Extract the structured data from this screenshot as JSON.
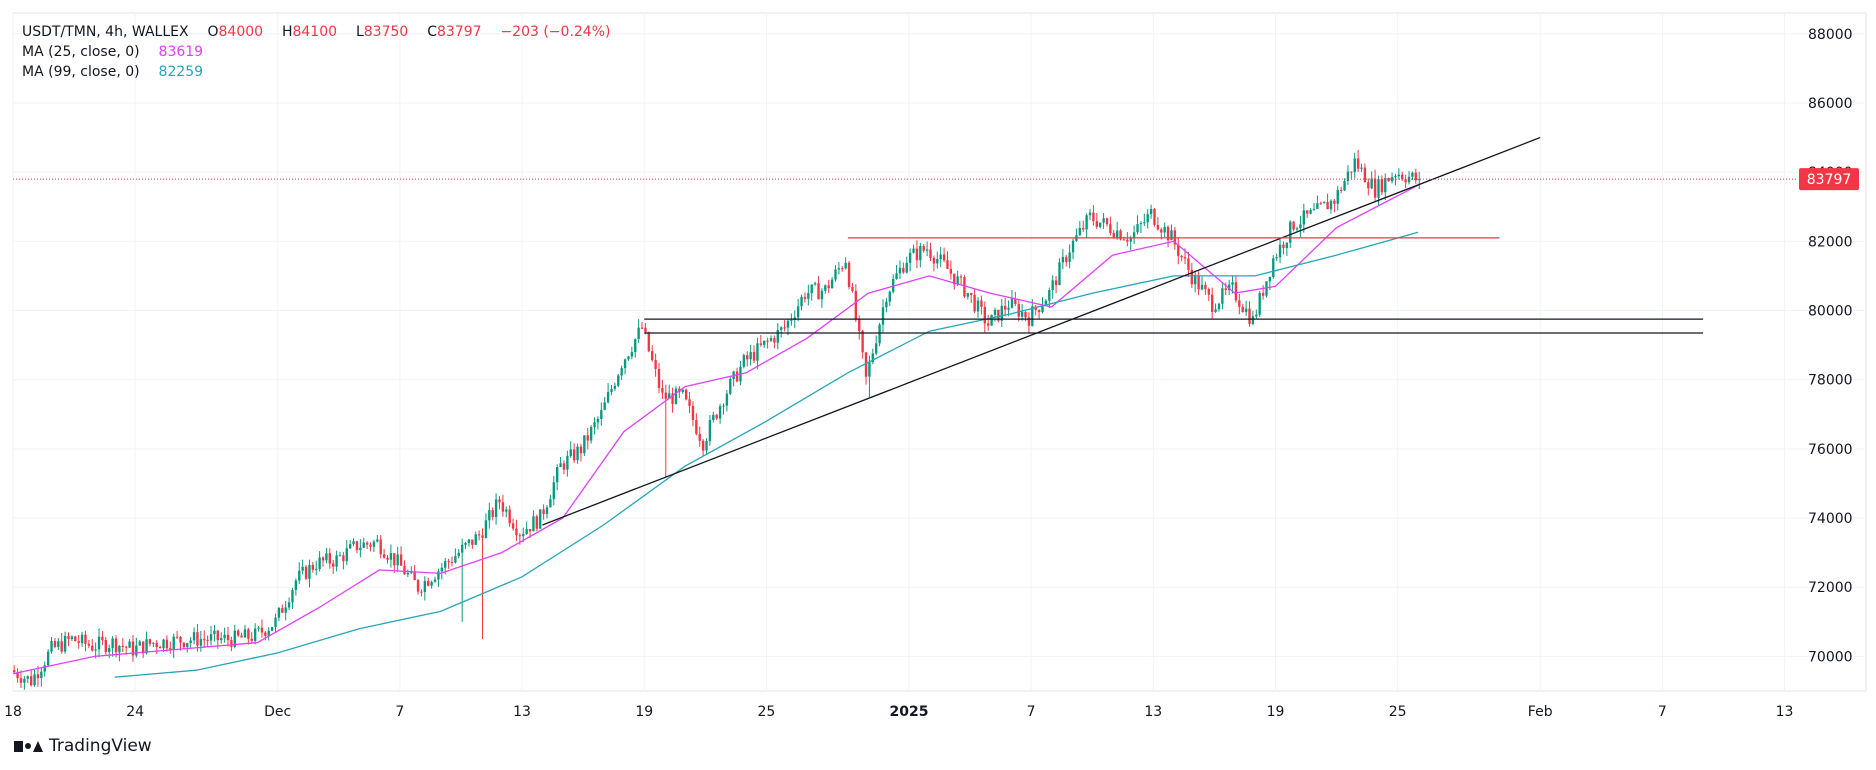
{
  "legend": {
    "symbol": "USDT/TMN, 4h, WALLEX",
    "open_label": "O",
    "open": "84000",
    "high_label": "H",
    "high": "84100",
    "low_label": "L",
    "low": "83750",
    "close_label": "C",
    "close": "83797",
    "change": "−203 (−0.24%)",
    "ma25_label": "MA (25, close, 0)",
    "ma25_value": "83619",
    "ma99_label": "MA (99, close, 0)",
    "ma99_value": "82259"
  },
  "price_tag": "83797",
  "brand": "TradingView",
  "colors": {
    "up": "#089981",
    "down": "#f23645",
    "ma25": "#e040fb",
    "ma99": "#26a6b8",
    "axis_text": "#131722",
    "grid": "#f0f3fa",
    "border": "#e0e3eb",
    "price_line": "#f23645"
  },
  "chart_data": {
    "type": "candlestick",
    "y_axis": {
      "ticks": [
        70000,
        72000,
        74000,
        76000,
        78000,
        80000,
        82000,
        84000,
        86000,
        88000
      ],
      "range": [
        69000,
        88600
      ]
    },
    "x_axis": {
      "ticks": [
        {
          "label": "18",
          "date": "2024-11-18",
          "bold": false
        },
        {
          "label": "24",
          "date": "2024-11-24",
          "bold": false
        },
        {
          "label": "Dec",
          "date": "2024-12-01",
          "bold": false
        },
        {
          "label": "7",
          "date": "2024-12-07",
          "bold": false
        },
        {
          "label": "13",
          "date": "2024-12-13",
          "bold": false
        },
        {
          "label": "19",
          "date": "2024-12-19",
          "bold": false
        },
        {
          "label": "25",
          "date": "2024-12-25",
          "bold": false
        },
        {
          "label": "2025",
          "date": "2025-01-01",
          "bold": true
        },
        {
          "label": "7",
          "date": "2025-01-07",
          "bold": false
        },
        {
          "label": "13",
          "date": "2025-01-13",
          "bold": false
        },
        {
          "label": "19",
          "date": "2025-01-19",
          "bold": false
        },
        {
          "label": "25",
          "date": "2025-01-25",
          "bold": false
        },
        {
          "label": "Feb",
          "date": "2025-02-01",
          "bold": false
        },
        {
          "label": "7",
          "date": "2025-02-07",
          "bold": false
        },
        {
          "label": "13",
          "date": "2025-02-13",
          "bold": false
        }
      ],
      "range": [
        "2024-11-18",
        "2025-02-17"
      ]
    },
    "last_price": 83797,
    "close_path": [
      [
        "2024-11-18",
        69600
      ],
      [
        "2024-11-19",
        69300
      ],
      [
        "2024-11-20",
        70200
      ],
      [
        "2024-11-21",
        70500
      ],
      [
        "2024-11-22",
        70300
      ],
      [
        "2024-11-23",
        70400
      ],
      [
        "2024-11-24",
        70200
      ],
      [
        "2024-11-25",
        70400
      ],
      [
        "2024-11-27",
        70500
      ],
      [
        "2024-11-29",
        70500
      ],
      [
        "2024-11-30",
        70600
      ],
      [
        "2024-12-01",
        71000
      ],
      [
        "2024-12-02",
        72200
      ],
      [
        "2024-12-03",
        72700
      ],
      [
        "2024-12-04",
        72800
      ],
      [
        "2024-12-05",
        73200
      ],
      [
        "2024-12-06",
        73300
      ],
      [
        "2024-12-07",
        72700
      ],
      [
        "2024-12-08",
        72000
      ],
      [
        "2024-12-09",
        72500
      ],
      [
        "2024-12-10",
        73000
      ],
      [
        "2024-12-11",
        73500
      ],
      [
        "2024-12-12",
        74500
      ],
      [
        "2024-12-13",
        73600
      ],
      [
        "2024-12-14",
        74000
      ],
      [
        "2024-12-15",
        75500
      ],
      [
        "2024-12-16",
        76000
      ],
      [
        "2024-12-17",
        77000
      ],
      [
        "2024-12-18",
        78500
      ],
      [
        "2024-12-19",
        79500
      ],
      [
        "2024-12-20",
        77500
      ],
      [
        "2024-12-21",
        77500
      ],
      [
        "2024-12-22",
        76200
      ],
      [
        "2024-12-23",
        77500
      ],
      [
        "2024-12-24",
        78500
      ],
      [
        "2024-12-25",
        79000
      ],
      [
        "2024-12-26",
        79500
      ],
      [
        "2024-12-27",
        80500
      ],
      [
        "2024-12-28",
        80600
      ],
      [
        "2024-12-29",
        81500
      ],
      [
        "2024-12-30",
        78000
      ],
      [
        "2024-12-31",
        80500
      ],
      [
        "2025-01-01",
        81500
      ],
      [
        "2025-01-02",
        81800
      ],
      [
        "2025-01-03",
        81200
      ],
      [
        "2025-01-04",
        80500
      ],
      [
        "2025-01-05",
        79600
      ],
      [
        "2025-01-06",
        80200
      ],
      [
        "2025-01-07",
        79800
      ],
      [
        "2025-01-08",
        80500
      ],
      [
        "2025-01-09",
        81800
      ],
      [
        "2025-01-10",
        82700
      ],
      [
        "2025-01-11",
        82400
      ],
      [
        "2025-01-12",
        82100
      ],
      [
        "2025-01-13",
        82800
      ],
      [
        "2025-01-14",
        82100
      ],
      [
        "2025-01-15",
        81000
      ],
      [
        "2025-01-16",
        80200
      ],
      [
        "2025-01-17",
        80600
      ],
      [
        "2025-01-18",
        79700
      ],
      [
        "2025-01-19",
        81500
      ],
      [
        "2025-01-20",
        82500
      ],
      [
        "2025-01-21",
        82800
      ],
      [
        "2025-01-22",
        83200
      ],
      [
        "2025-01-23",
        84300
      ],
      [
        "2025-01-24",
        83500
      ],
      [
        "2025-01-25",
        84000
      ],
      [
        "2025-01-26",
        83797
      ]
    ],
    "spikes": [
      {
        "date": "2024-12-10",
        "low": 71000
      },
      {
        "date": "2024-12-11",
        "low": 70500
      },
      {
        "date": "2024-12-20",
        "low": 75200
      },
      {
        "date": "2024-12-30",
        "low": 77500
      }
    ],
    "ma25": {
      "name": "MA (25, close, 0)",
      "points": [
        [
          "2024-11-18",
          69500
        ],
        [
          "2024-11-22",
          70000
        ],
        [
          "2024-11-26",
          70200
        ],
        [
          "2024-11-30",
          70400
        ],
        [
          "2024-12-03",
          71400
        ],
        [
          "2024-12-06",
          72500
        ],
        [
          "2024-12-09",
          72400
        ],
        [
          "2024-12-12",
          73000
        ],
        [
          "2024-12-15",
          74000
        ],
        [
          "2024-12-18",
          76500
        ],
        [
          "2024-12-21",
          77800
        ],
        [
          "2024-12-24",
          78200
        ],
        [
          "2024-12-27",
          79200
        ],
        [
          "2024-12-30",
          80500
        ],
        [
          "2025-01-02",
          81000
        ],
        [
          "2025-01-05",
          80500
        ],
        [
          "2025-01-08",
          80100
        ],
        [
          "2025-01-11",
          81600
        ],
        [
          "2025-01-14",
          82000
        ],
        [
          "2025-01-17",
          80500
        ],
        [
          "2025-01-19",
          80700
        ],
        [
          "2025-01-22",
          82400
        ],
        [
          "2025-01-26",
          83619
        ]
      ]
    },
    "ma99": {
      "name": "MA (99, close, 0)",
      "points": [
        [
          "2024-11-23",
          69400
        ],
        [
          "2024-11-27",
          69600
        ],
        [
          "2024-12-01",
          70100
        ],
        [
          "2024-12-05",
          70800
        ],
        [
          "2024-12-09",
          71300
        ],
        [
          "2024-12-13",
          72300
        ],
        [
          "2024-12-17",
          73800
        ],
        [
          "2024-12-21",
          75500
        ],
        [
          "2024-12-25",
          76800
        ],
        [
          "2024-12-29",
          78200
        ],
        [
          "2025-01-02",
          79400
        ],
        [
          "2025-01-06",
          79900
        ],
        [
          "2025-01-10",
          80500
        ],
        [
          "2025-01-14",
          81000
        ],
        [
          "2025-01-18",
          81000
        ],
        [
          "2025-01-22",
          81600
        ],
        [
          "2025-01-26",
          82259
        ]
      ]
    },
    "drawings": [
      {
        "kind": "trendline",
        "color": "#131722",
        "from": [
          "2024-12-14",
          73800
        ],
        "to": [
          "2025-02-01",
          85000
        ]
      },
      {
        "kind": "level",
        "color": "#f23645",
        "from": [
          "2024-12-29",
          82100
        ],
        "to": [
          "2025-01-30",
          82100
        ]
      },
      {
        "kind": "level",
        "color": "#131722",
        "from": [
          "2024-12-19",
          79750
        ],
        "to": [
          "2025-02-09",
          79750
        ]
      },
      {
        "kind": "level",
        "color": "#131722",
        "from": [
          "2024-12-19",
          79350
        ],
        "to": [
          "2025-02-09",
          79350
        ]
      }
    ]
  }
}
